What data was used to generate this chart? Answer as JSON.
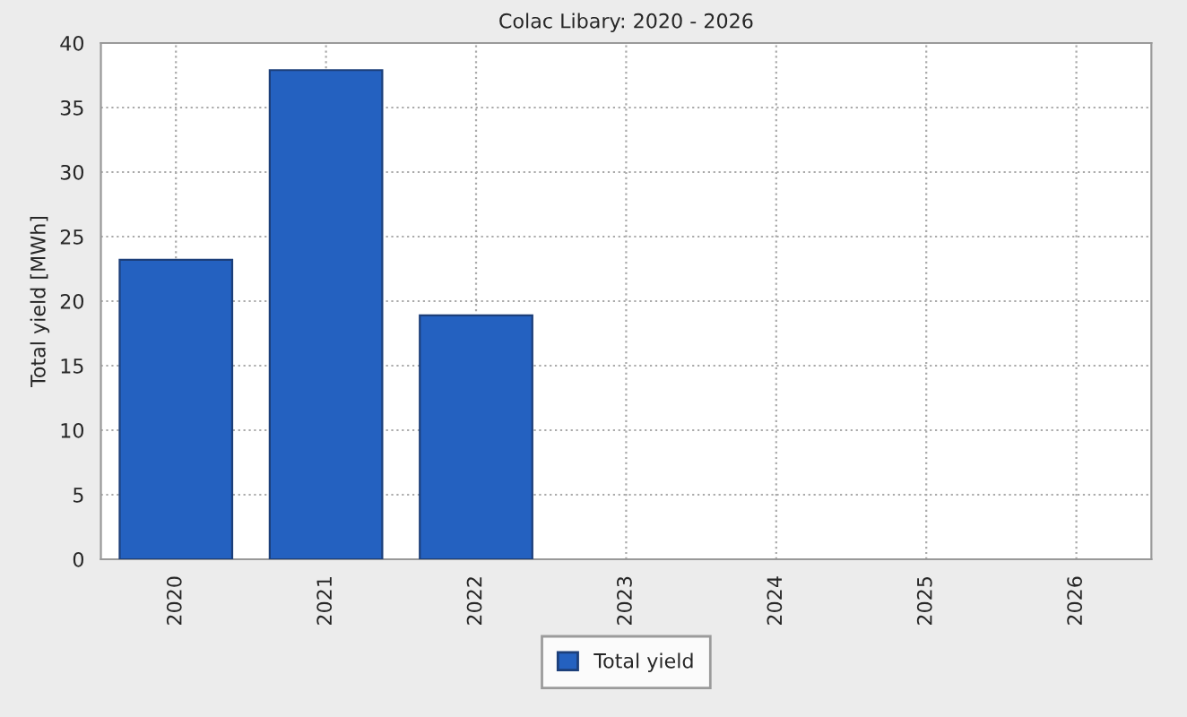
{
  "chart_data": {
    "type": "bar",
    "title": "Colac Libary: 2020 - 2026",
    "ylabel": "Total yield [MWh]",
    "categories": [
      "2020",
      "2021",
      "2022",
      "2023",
      "2024",
      "2025",
      "2026"
    ],
    "series": [
      {
        "name": "Total yield",
        "color": "#2461c0",
        "values": [
          23.2,
          37.9,
          18.9,
          null,
          null,
          null,
          null
        ]
      }
    ],
    "ylim": [
      0,
      40
    ],
    "yticks": [
      0,
      5,
      10,
      15,
      20,
      25,
      30,
      35,
      40
    ],
    "grid": true,
    "legend": "bottom"
  }
}
